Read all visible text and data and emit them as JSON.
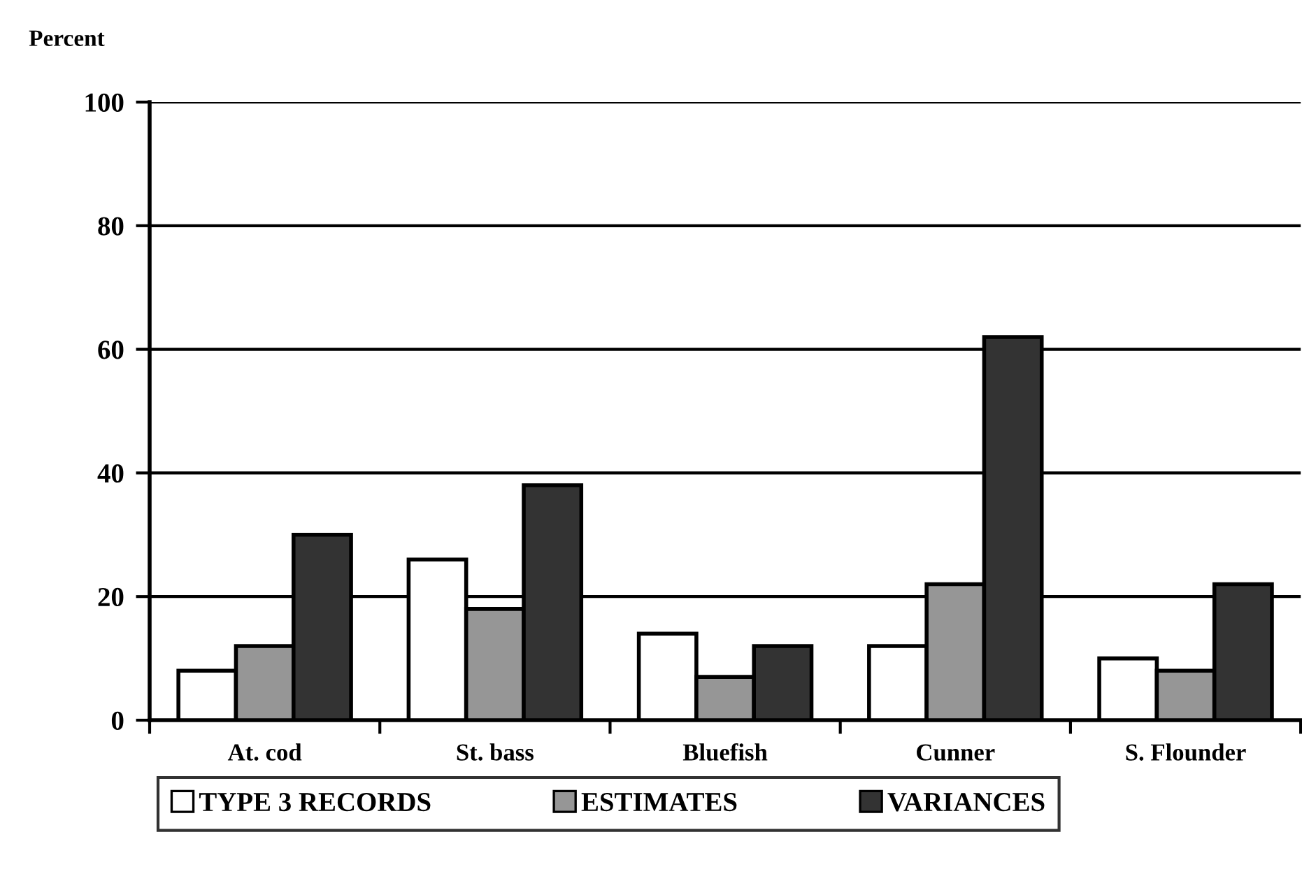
{
  "chart_data": {
    "type": "bar",
    "ylabel": "Percent",
    "categories": [
      "At. cod",
      "St. bass",
      "Bluefish",
      "Cunner",
      "S. Flounder"
    ],
    "series": [
      {
        "name": "TYPE 3 RECORDS",
        "color": "#ffffff",
        "values": [
          8,
          26,
          14,
          12,
          10
        ]
      },
      {
        "name": "ESTIMATES",
        "color": "#969696",
        "values": [
          12,
          18,
          7,
          22,
          8
        ]
      },
      {
        "name": "VARIANCES",
        "color": "#333333",
        "values": [
          30,
          38,
          12,
          62,
          22
        ]
      }
    ],
    "ylim": [
      0,
      100
    ],
    "yticks": [
      0,
      20,
      40,
      60,
      80,
      100
    ],
    "grid": "y",
    "legend": "bottom"
  }
}
